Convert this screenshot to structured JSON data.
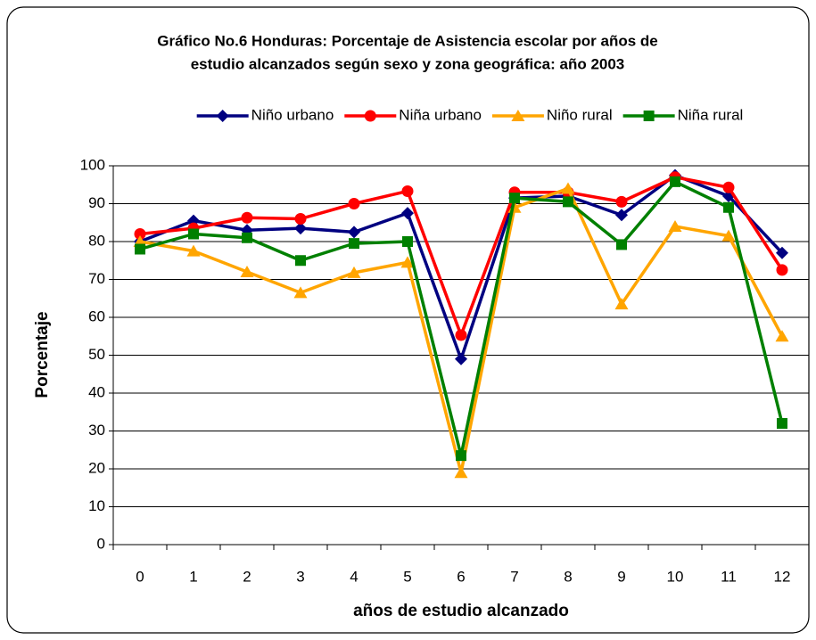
{
  "chart_data": {
    "type": "line",
    "title": [
      "Gráfico No.6 Honduras: Porcentaje de Asistencia escolar por años de",
      "estudio alcanzados según sexo y zona geográfica: año 2003"
    ],
    "xlabel": "años de estudio alcanzado",
    "ylabel": "Porcentaje",
    "categories": [
      "0",
      "1",
      "2",
      "3",
      "4",
      "5",
      "6",
      "7",
      "8",
      "9",
      "10",
      "11",
      "12"
    ],
    "series": [
      {
        "name": "Niño urbano",
        "color": "#000080",
        "marker": "diamond",
        "values": [
          80,
          85.5,
          83,
          83.5,
          82.5,
          87.5,
          49,
          91.5,
          92,
          87,
          97.5,
          92,
          77
        ]
      },
      {
        "name": "Niña urbano",
        "color": "#ff0000",
        "marker": "circle",
        "values": [
          82,
          83.5,
          86.3,
          86,
          90,
          93.3,
          55.3,
          93,
          93,
          90.5,
          97,
          94.3,
          72.5
        ]
      },
      {
        "name": "Niño rural",
        "color": "#ffa500",
        "marker": "triangle",
        "values": [
          80,
          77.5,
          72,
          66.5,
          71.8,
          74.5,
          19,
          89,
          94,
          63.5,
          84,
          81.5,
          55
        ]
      },
      {
        "name": "Niña rural",
        "color": "#008000",
        "marker": "square",
        "values": [
          78,
          82,
          81,
          75,
          79.5,
          80,
          23.5,
          91.5,
          90.5,
          79.2,
          95.8,
          89,
          32
        ]
      }
    ],
    "ylim": [
      0,
      100
    ],
    "yticks": [
      0,
      10,
      20,
      30,
      40,
      50,
      60,
      70,
      80,
      90,
      100
    ],
    "grid": true,
    "legend": "top"
  }
}
